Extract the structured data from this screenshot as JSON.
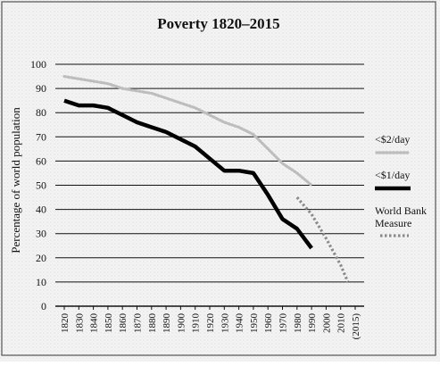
{
  "chart_data": {
    "type": "line",
    "title": "Poverty 1820–2015",
    "ylabel": "Percentage of world population",
    "xlabel": "",
    "ylim": [
      0,
      100
    ],
    "yticks": [
      0,
      10,
      20,
      30,
      40,
      50,
      60,
      70,
      80,
      90,
      100
    ],
    "xticks": [
      "1820",
      "1830",
      "1840",
      "1850",
      "1860",
      "1870",
      "1880",
      "1890",
      "1900",
      "1910",
      "1920",
      "1930",
      "1940",
      "1950",
      "1960",
      "1970",
      "1980",
      "1990",
      "2000",
      "2010",
      "(2015)"
    ],
    "grid": "horizontal",
    "legend_position": "right",
    "series": [
      {
        "name": "<$2/day",
        "style": "light-dotted",
        "color": "#c4c4c4",
        "x": [
          1820,
          1830,
          1840,
          1850,
          1860,
          1870,
          1880,
          1890,
          1900,
          1910,
          1920,
          1930,
          1940,
          1950,
          1960,
          1970,
          1980,
          1990
        ],
        "y": [
          95,
          94,
          93,
          92,
          90,
          89,
          88,
          86,
          84,
          82,
          79,
          76,
          74,
          71,
          65,
          59,
          55,
          50
        ]
      },
      {
        "name": "<$1/day",
        "style": "thick-solid",
        "color": "#000000",
        "x": [
          1820,
          1830,
          1840,
          1850,
          1860,
          1870,
          1880,
          1890,
          1900,
          1910,
          1920,
          1930,
          1940,
          1950,
          1960,
          1970,
          1980,
          1990
        ],
        "y": [
          85,
          83,
          83,
          82,
          79,
          76,
          74,
          72,
          69,
          66,
          61,
          56,
          56,
          55,
          46,
          36,
          32,
          24
        ]
      },
      {
        "name": "World Bank Measure",
        "style": "dashed",
        "color": "#8a8a8a",
        "x": [
          1980,
          1990,
          2000,
          2010,
          2015
        ],
        "y": [
          45,
          38,
          28,
          17,
          10
        ]
      }
    ]
  }
}
